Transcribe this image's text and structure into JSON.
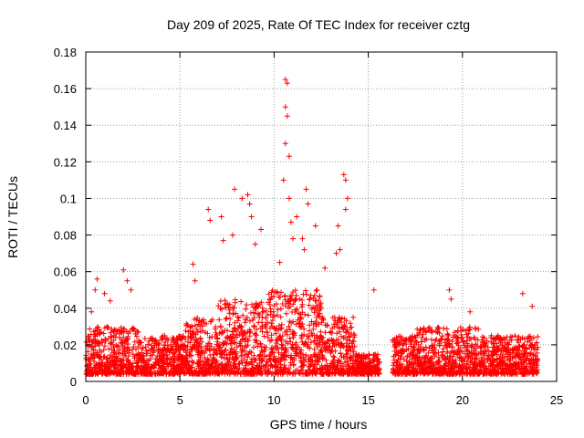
{
  "chart_data": {
    "type": "scatter",
    "title": "Day 209 of 2025, Rate Of TEC Index for receiver cztg",
    "xlabel": "GPS time / hours",
    "ylabel": "ROTI / TECUs",
    "xlim": [
      0,
      25
    ],
    "ylim": [
      0,
      0.18
    ],
    "xticks": [
      0,
      5,
      10,
      15,
      20,
      25
    ],
    "yticks": [
      0,
      0.02,
      0.04,
      0.06,
      0.08,
      0.1,
      0.12,
      0.14,
      0.16,
      0.18
    ],
    "ytick_labels": [
      "0",
      "0.02",
      "0.04",
      "0.06",
      "0.08",
      "0.1",
      "0.12",
      "0.14",
      "0.16",
      "0.18"
    ],
    "grid": true,
    "marker": "+",
    "color": "#ff0000",
    "data_gap_hours": [
      15.6,
      16.3
    ],
    "x_extent_hours": [
      0,
      24
    ],
    "highlight_points": [
      [
        0.3,
        0.038
      ],
      [
        0.5,
        0.05
      ],
      [
        0.6,
        0.056
      ],
      [
        1.0,
        0.048
      ],
      [
        1.3,
        0.044
      ],
      [
        2.0,
        0.061
      ],
      [
        2.2,
        0.055
      ],
      [
        2.4,
        0.05
      ],
      [
        5.7,
        0.064
      ],
      [
        5.8,
        0.055
      ],
      [
        6.5,
        0.094
      ],
      [
        6.6,
        0.088
      ],
      [
        7.2,
        0.09
      ],
      [
        7.3,
        0.077
      ],
      [
        7.8,
        0.08
      ],
      [
        7.9,
        0.105
      ],
      [
        8.3,
        0.1
      ],
      [
        8.6,
        0.102
      ],
      [
        8.7,
        0.097
      ],
      [
        8.8,
        0.09
      ],
      [
        9.0,
        0.075
      ],
      [
        9.3,
        0.083
      ],
      [
        10.3,
        0.065
      ],
      [
        10.5,
        0.11
      ],
      [
        10.6,
        0.13
      ],
      [
        10.6,
        0.15
      ],
      [
        10.7,
        0.145
      ],
      [
        10.6,
        0.165
      ],
      [
        10.7,
        0.163
      ],
      [
        10.8,
        0.123
      ],
      [
        10.8,
        0.1
      ],
      [
        10.9,
        0.087
      ],
      [
        11.0,
        0.078
      ],
      [
        11.2,
        0.09
      ],
      [
        11.5,
        0.078
      ],
      [
        11.6,
        0.072
      ],
      [
        11.7,
        0.105
      ],
      [
        11.8,
        0.097
      ],
      [
        12.2,
        0.085
      ],
      [
        12.7,
        0.062
      ],
      [
        13.3,
        0.07
      ],
      [
        13.4,
        0.085
      ],
      [
        13.5,
        0.072
      ],
      [
        13.7,
        0.113
      ],
      [
        13.8,
        0.11
      ],
      [
        13.9,
        0.1
      ],
      [
        13.8,
        0.094
      ],
      [
        14.2,
        0.035
      ],
      [
        15.3,
        0.05
      ],
      [
        19.3,
        0.05
      ],
      [
        19.4,
        0.045
      ],
      [
        20.4,
        0.038
      ],
      [
        23.2,
        0.048
      ],
      [
        23.7,
        0.041
      ]
    ],
    "baseline_level": 0.01,
    "bands": [
      {
        "x": [
          0.0,
          2.8
        ],
        "y_max": 0.03
      },
      {
        "x": [
          2.8,
          5.3
        ],
        "y_max": 0.025
      },
      {
        "x": [
          5.3,
          7.0
        ],
        "y_max": 0.035
      },
      {
        "x": [
          7.0,
          9.5
        ],
        "y_max": 0.045
      },
      {
        "x": [
          9.5,
          12.5
        ],
        "y_max": 0.05
      },
      {
        "x": [
          12.5,
          14.3
        ],
        "y_max": 0.035
      },
      {
        "x": [
          14.3,
          15.6
        ],
        "y_max": 0.015
      },
      {
        "x": [
          16.3,
          17.5
        ],
        "y_max": 0.025
      },
      {
        "x": [
          17.5,
          21.0
        ],
        "y_max": 0.03
      },
      {
        "x": [
          21.0,
          24.0
        ],
        "y_max": 0.025
      }
    ]
  }
}
